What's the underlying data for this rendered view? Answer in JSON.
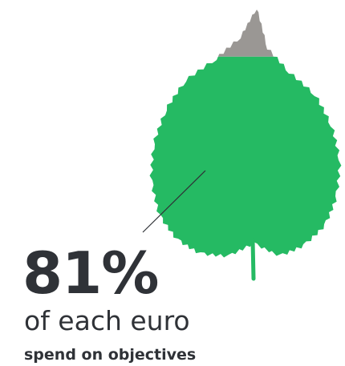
{
  "chart_data": {
    "type": "area",
    "value_percent": 81,
    "remainder_percent": 19,
    "big_label": "81%",
    "caption_line_1": "of each euro",
    "caption_line_2": "spend on objectives"
  },
  "colors": {
    "filled": "#25ba63",
    "unfilled": "#9a9794",
    "text": "#2f3237",
    "pointer_line": "#2f3237"
  }
}
